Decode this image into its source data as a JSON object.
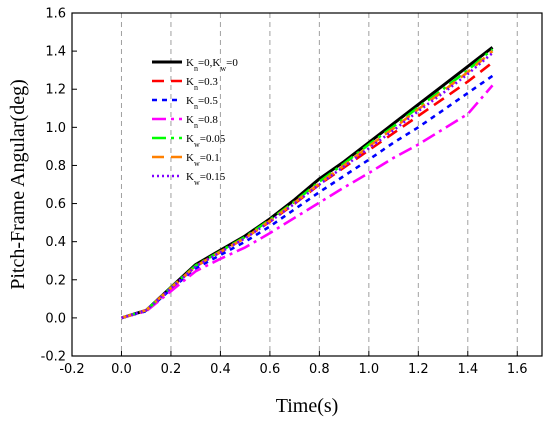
{
  "chart_data": {
    "type": "line",
    "title": "",
    "xlabel": "Time(s)",
    "ylabel": "Pitch-Frame Angular(deg)",
    "xlim": [
      -0.2,
      1.7
    ],
    "ylim": [
      -0.2,
      1.6
    ],
    "xticks": [
      "-0.2",
      "0.0",
      "0.2",
      "0.4",
      "0.6",
      "0.8",
      "1.0",
      "1.2",
      "1.4",
      "1.6"
    ],
    "yticks": [
      "-0.2",
      "0.0",
      "0.2",
      "0.4",
      "0.6",
      "0.8",
      "1.0",
      "1.2",
      "1.4",
      "1.6"
    ],
    "grid": "vertical dashed",
    "legend_position": "top-left",
    "series": [
      {
        "name": "Kn=0,Kw=0",
        "label_parts": [
          [
            "K",
            ""
          ],
          [
            "n",
            "sub"
          ],
          [
            "=0,K",
            ""
          ],
          [
            "w",
            "sub"
          ],
          [
            "=0",
            ""
          ]
        ],
        "color": "#000000",
        "dash": "solid",
        "x": [
          0.0,
          0.1,
          0.2,
          0.3,
          0.4,
          0.5,
          0.6,
          0.7,
          0.8,
          0.9,
          1.0,
          1.1,
          1.2,
          1.3,
          1.4,
          1.5
        ],
        "y": [
          0.0,
          0.04,
          0.16,
          0.28,
          0.355,
          0.43,
          0.52,
          0.62,
          0.73,
          0.82,
          0.92,
          1.02,
          1.12,
          1.22,
          1.32,
          1.42
        ]
      },
      {
        "name": "Kn=0.3",
        "label_parts": [
          [
            "K",
            ""
          ],
          [
            "n",
            "sub"
          ],
          [
            "=0.3",
            ""
          ]
        ],
        "color": "#ff0000",
        "dash": "long",
        "x": [
          0.0,
          0.1,
          0.2,
          0.3,
          0.4,
          0.5,
          0.6,
          0.7,
          0.8,
          0.9,
          1.0,
          1.1,
          1.2,
          1.3,
          1.4,
          1.5
        ],
        "y": [
          0.0,
          0.04,
          0.155,
          0.27,
          0.345,
          0.42,
          0.505,
          0.6,
          0.7,
          0.79,
          0.88,
          0.97,
          1.06,
          1.15,
          1.24,
          1.34
        ]
      },
      {
        "name": "Kn=0.5",
        "label_parts": [
          [
            "K",
            ""
          ],
          [
            "n",
            "sub"
          ],
          [
            "=0.5",
            ""
          ]
        ],
        "color": "#0000ff",
        "dash": "short",
        "x": [
          0.0,
          0.1,
          0.2,
          0.3,
          0.4,
          0.5,
          0.6,
          0.7,
          0.8,
          0.9,
          1.0,
          1.1,
          1.2,
          1.3,
          1.4,
          1.5
        ],
        "y": [
          0.0,
          0.035,
          0.15,
          0.26,
          0.33,
          0.4,
          0.48,
          0.57,
          0.66,
          0.745,
          0.83,
          0.92,
          1.0,
          1.09,
          1.18,
          1.27
        ]
      },
      {
        "name": "Kn=0.8",
        "label_parts": [
          [
            "K",
            ""
          ],
          [
            "n",
            "sub"
          ],
          [
            "=0.8",
            ""
          ]
        ],
        "color": "#ff00ff",
        "dash": "dashdot",
        "x": [
          0.0,
          0.1,
          0.2,
          0.3,
          0.4,
          0.5,
          0.6,
          0.7,
          0.8,
          0.9,
          1.0,
          1.1,
          1.2,
          1.3,
          1.4,
          1.5
        ],
        "y": [
          0.0,
          0.035,
          0.14,
          0.245,
          0.31,
          0.37,
          0.445,
          0.525,
          0.605,
          0.685,
          0.76,
          0.84,
          0.91,
          0.99,
          1.07,
          1.22
        ]
      },
      {
        "name": "Kw=0.05",
        "label_parts": [
          [
            "K",
            ""
          ],
          [
            "w",
            "sub"
          ],
          [
            "=0.05",
            ""
          ]
        ],
        "color": "#00ff00",
        "dash": "dashdot",
        "x": [
          0.0,
          0.1,
          0.2,
          0.3,
          0.4,
          0.5,
          0.6,
          0.7,
          0.8,
          0.9,
          1.0,
          1.1,
          1.2,
          1.3,
          1.4,
          1.5
        ],
        "y": [
          0.0,
          0.04,
          0.16,
          0.275,
          0.35,
          0.425,
          0.515,
          0.61,
          0.715,
          0.81,
          0.91,
          1.005,
          1.105,
          1.2,
          1.3,
          1.41
        ]
      },
      {
        "name": "Kw=0.1",
        "label_parts": [
          [
            "K",
            ""
          ],
          [
            "w",
            "sub"
          ],
          [
            "=0.1",
            ""
          ]
        ],
        "color": "#ff8000",
        "dash": "long",
        "x": [
          0.0,
          0.1,
          0.2,
          0.3,
          0.4,
          0.5,
          0.6,
          0.7,
          0.8,
          0.9,
          1.0,
          1.1,
          1.2,
          1.3,
          1.4,
          1.5
        ],
        "y": [
          0.0,
          0.04,
          0.158,
          0.272,
          0.348,
          0.42,
          0.51,
          0.605,
          0.705,
          0.8,
          0.9,
          0.995,
          1.095,
          1.19,
          1.29,
          1.4
        ]
      },
      {
        "name": "Kw=0.15",
        "label_parts": [
          [
            "K",
            ""
          ],
          [
            "w",
            "sub"
          ],
          [
            "=0.15",
            ""
          ]
        ],
        "color": "#8000ff",
        "dash": "dot",
        "x": [
          0.0,
          0.1,
          0.2,
          0.3,
          0.4,
          0.5,
          0.6,
          0.7,
          0.8,
          0.9,
          1.0,
          1.1,
          1.2,
          1.3,
          1.4,
          1.5
        ],
        "y": [
          0.0,
          0.04,
          0.156,
          0.27,
          0.345,
          0.418,
          0.505,
          0.6,
          0.7,
          0.795,
          0.89,
          0.985,
          1.085,
          1.18,
          1.28,
          1.39
        ]
      }
    ]
  }
}
